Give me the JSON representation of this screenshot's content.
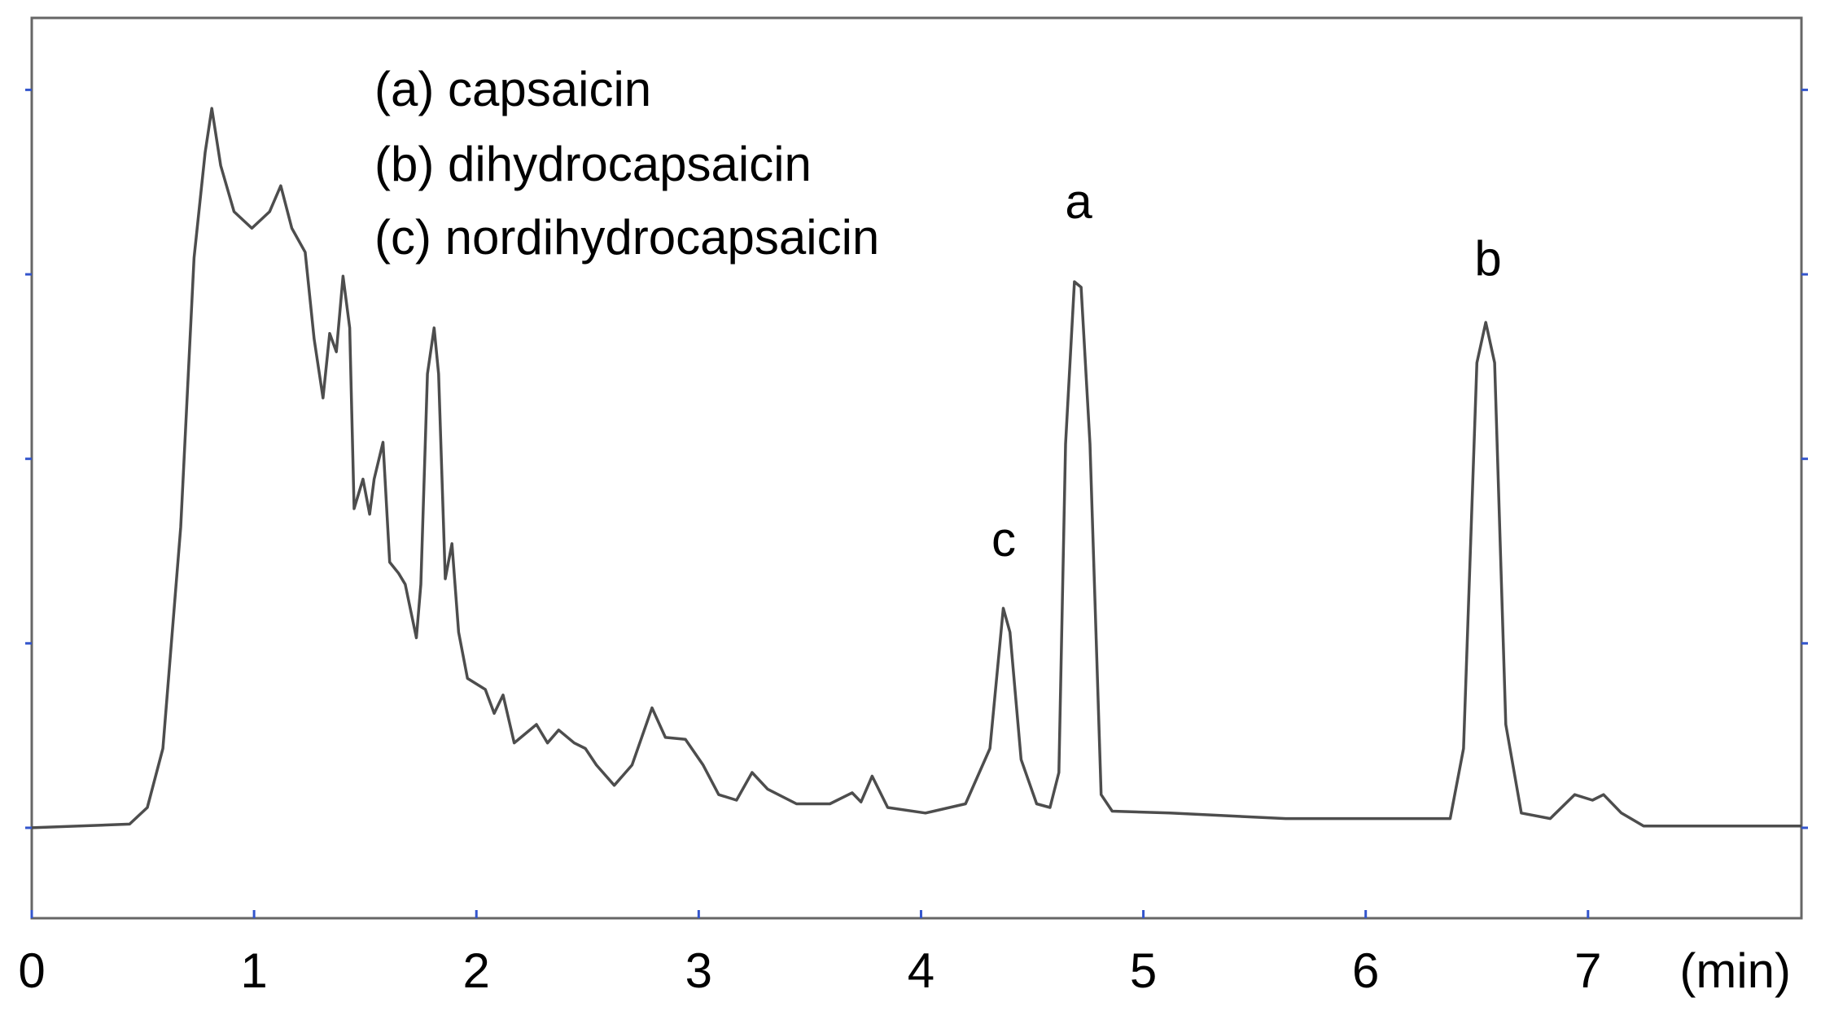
{
  "chart_data": {
    "type": "line",
    "x_label": "(min)",
    "annotations": [
      "(a) capsaicin",
      "(b) dihydrocapsaicin",
      "(c) nordihydrocapsaicin",
      "a",
      "b",
      "c"
    ],
    "xlim": [
      0,
      7.96
    ],
    "xticks": [
      0,
      1,
      2,
      3,
      4,
      5,
      6,
      7
    ],
    "ylim": [
      -0.49,
      4.39
    ],
    "yticks": [
      0,
      1,
      2,
      3,
      4
    ],
    "color": "#4d4d4d",
    "x": [
      0,
      0.44,
      0.52,
      0.59,
      0.67,
      0.73,
      0.78,
      0.81,
      0.85,
      0.91,
      0.99,
      1.07,
      1.12,
      1.17,
      1.23,
      1.27,
      1.31,
      1.34,
      1.37,
      1.4,
      1.43,
      1.45,
      1.49,
      1.52,
      1.54,
      1.58,
      1.61,
      1.65,
      1.68,
      1.73,
      1.75,
      1.78,
      1.81,
      1.83,
      1.86,
      1.89,
      1.92,
      1.96,
      2.04,
      2.08,
      2.12,
      2.17,
      2.27,
      2.32,
      2.37,
      2.44,
      2.49,
      2.54,
      2.62,
      2.7,
      2.79,
      2.85,
      2.94,
      3.02,
      3.09,
      3.17,
      3.24,
      3.31,
      3.44,
      3.59,
      3.69,
      3.73,
      3.78,
      3.85,
      4.02,
      4.2,
      4.31,
      4.37,
      4.4,
      4.45,
      4.52,
      4.58,
      4.62,
      4.65,
      4.69,
      4.72,
      4.76,
      4.81,
      4.86,
      5.12,
      5.64,
      6.38,
      6.44,
      6.5,
      6.54,
      6.58,
      6.63,
      6.7,
      6.83,
      6.94,
      7.02,
      7.07,
      7.15,
      7.25,
      7.96
    ],
    "values": [
      0,
      0.02,
      0.11,
      0.43,
      1.63,
      3.09,
      3.66,
      3.9,
      3.59,
      3.34,
      3.25,
      3.34,
      3.48,
      3.25,
      3.12,
      2.65,
      2.33,
      2.68,
      2.58,
      2.99,
      2.71,
      1.73,
      1.89,
      1.7,
      1.89,
      2.09,
      1.44,
      1.38,
      1.32,
      1.03,
      1.32,
      2.46,
      2.71,
      2.46,
      1.35,
      1.54,
      1.06,
      0.81,
      0.75,
      0.62,
      0.72,
      0.46,
      0.56,
      0.46,
      0.53,
      0.46,
      0.43,
      0.34,
      0.23,
      0.34,
      0.65,
      0.49,
      0.48,
      0.34,
      0.18,
      0.15,
      0.3,
      0.21,
      0.13,
      0.13,
      0.19,
      0.14,
      0.28,
      0.11,
      0.08,
      0.13,
      0.43,
      1.19,
      1.06,
      0.37,
      0.13,
      0.11,
      0.3,
      2.08,
      2.96,
      2.93,
      2.08,
      0.18,
      0.09,
      0.08,
      0.05,
      0.05,
      0.43,
      2.52,
      2.74,
      2.52,
      0.56,
      0.08,
      0.05,
      0.18,
      0.15,
      0.18,
      0.08,
      0.01,
      0.01
    ]
  }
}
